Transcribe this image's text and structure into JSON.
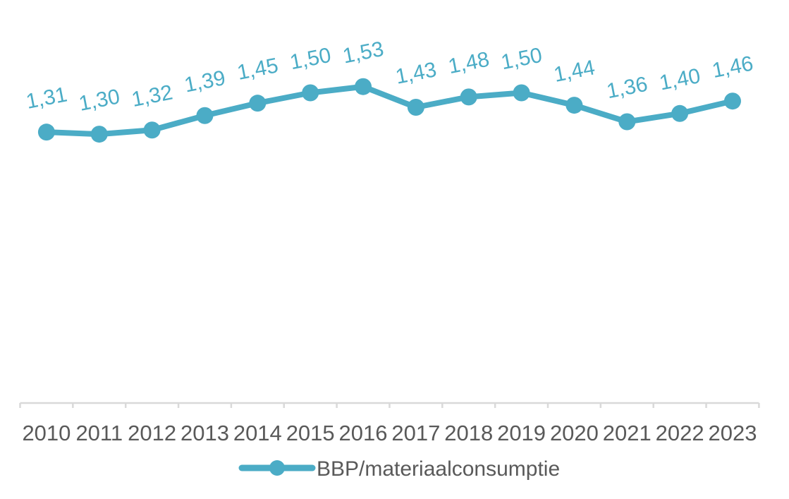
{
  "chart_data": {
    "type": "line",
    "categories": [
      "2010",
      "2011",
      "2012",
      "2013",
      "2014",
      "2015",
      "2016",
      "2017",
      "2018",
      "2019",
      "2020",
      "2021",
      "2022",
      "2023"
    ],
    "series": [
      {
        "name": "BBP/materiaalconsumptie",
        "values": [
          1.31,
          1.3,
          1.32,
          1.39,
          1.45,
          1.5,
          1.53,
          1.43,
          1.48,
          1.5,
          1.44,
          1.36,
          1.4,
          1.46
        ],
        "labels": [
          "1,31",
          "1,30",
          "1,32",
          "1,39",
          "1,45",
          "1,50",
          "1,53",
          "1,43",
          "1,48",
          "1,50",
          "1,44",
          "1,36",
          "1,40",
          "1,46"
        ],
        "color": "#4BACC6"
      }
    ],
    "ylim": [
      0,
      1.8
    ],
    "grid": false,
    "legend_position": "bottom-center",
    "legend_entries": [
      "BBP/materiaalconsumptie"
    ],
    "data_labels_shown": true,
    "axis_line_color": "#D9D9D9",
    "tick_label_color": "#595959",
    "data_label_color": "#4BACC6",
    "background_color": "#ffffff"
  }
}
